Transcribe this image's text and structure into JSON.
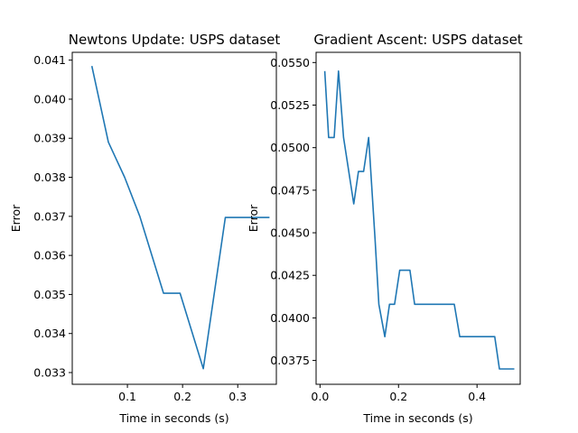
{
  "chart_data": [
    {
      "type": "line",
      "title": "Newtons Update: USPS dataset",
      "xlabel": "Time in seconds (s)",
      "ylabel": "Error",
      "xlim": [
        0.0,
        0.37
      ],
      "ylim": [
        0.0327,
        0.0412
      ],
      "xticks": [
        0.1,
        0.2,
        0.3
      ],
      "xtick_labels": [
        "0.1",
        "0.2",
        "0.3"
      ],
      "yticks": [
        0.033,
        0.034,
        0.035,
        0.036,
        0.037,
        0.038,
        0.039,
        0.04,
        0.041
      ],
      "ytick_labels": [
        "0.033",
        "0.034",
        "0.035",
        "0.036",
        "0.037",
        "0.038",
        "0.039",
        "0.040",
        "0.041"
      ],
      "color": "#1f77b4",
      "grid": false,
      "series": [
        {
          "x": [
            0.0355,
            0.0655,
            0.095,
            0.1225,
            0.1655,
            0.1955,
            0.2375,
            0.2775,
            0.3135,
            0.3575
          ],
          "values": [
            0.04085,
            0.0389,
            0.038,
            0.037,
            0.03503,
            0.03503,
            0.0331,
            0.03697,
            0.03697,
            0.03697
          ]
        }
      ]
    },
    {
      "type": "line",
      "title": "Gradient Ascent: USPS dataset",
      "xlabel": "Time in seconds (s)",
      "ylabel": "Error",
      "xlim": [
        -0.01,
        0.51
      ],
      "ylim": [
        0.0361,
        0.0556
      ],
      "xticks": [
        0.0,
        0.2,
        0.4
      ],
      "xtick_labels": [
        "0.0",
        "0.2",
        "0.4"
      ],
      "yticks": [
        0.0375,
        0.04,
        0.0425,
        0.045,
        0.0475,
        0.05,
        0.0525,
        0.055
      ],
      "ytick_labels": [
        "0.0375",
        "0.0400",
        "0.0425",
        "0.0450",
        "0.0475",
        "0.0500",
        "0.0525",
        "0.0550"
      ],
      "color": "#1f77b4",
      "grid": false,
      "series": [
        {
          "x": [
            0.012,
            0.022,
            0.036,
            0.047,
            0.06,
            0.086,
            0.098,
            0.111,
            0.124,
            0.14,
            0.15,
            0.165,
            0.177,
            0.19,
            0.203,
            0.229,
            0.241,
            0.254,
            0.279,
            0.305,
            0.342,
            0.356,
            0.419,
            0.432,
            0.445,
            0.457,
            0.483,
            0.495
          ],
          "values": [
            0.0545,
            0.0506,
            0.0506,
            0.0545,
            0.0506,
            0.0467,
            0.0486,
            0.0486,
            0.0506,
            0.0447,
            0.0408,
            0.0389,
            0.0408,
            0.0408,
            0.0428,
            0.0428,
            0.0408,
            0.0408,
            0.0408,
            0.0408,
            0.0408,
            0.0389,
            0.0389,
            0.0389,
            0.0389,
            0.037,
            0.037,
            0.037
          ]
        }
      ]
    }
  ]
}
